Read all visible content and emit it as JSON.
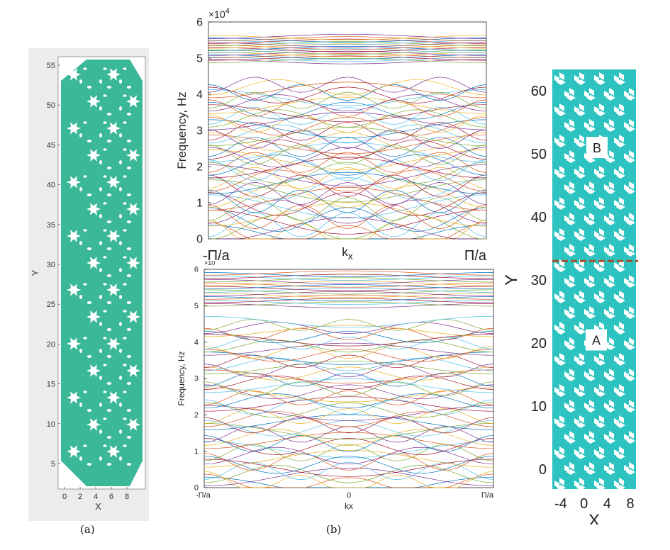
{
  "colors": {
    "teal_a": "#3bb897",
    "teal_c": "#2cc3c0",
    "gray_bg": "#ececec",
    "dashed_line": "#a0522d"
  },
  "panel_a": {
    "xlabel": "X",
    "ylabel": "Y",
    "xticks": [
      "0",
      "2",
      "4",
      "6",
      "8"
    ],
    "yticks": [
      "5",
      "10",
      "15",
      "20",
      "25",
      "30",
      "35",
      "40",
      "45",
      "50",
      "55"
    ],
    "caption": "(a)"
  },
  "panel_b": {
    "caption": "(b)"
  },
  "panel_c": {
    "xlabel": "X",
    "ylabel": "Y",
    "xticks": [
      "-4",
      "0",
      "4",
      "8"
    ],
    "yticks": [
      "0",
      "10",
      "20",
      "30",
      "40",
      "50",
      "60"
    ],
    "label_a": "A",
    "label_b": "B"
  },
  "chart_data": [
    {
      "type": "line",
      "ylabel": "Frequency, Hz",
      "xlabel": "k",
      "xlabel_sub": "x",
      "y_exponent": "×10",
      "y_exponent_power": "4",
      "ylim": [
        0,
        6
      ],
      "yticks": [
        "0",
        "1",
        "2",
        "3",
        "4",
        "5",
        "6"
      ],
      "xticks": [
        "-Π/a",
        "Π/a"
      ],
      "xlim": [
        -1,
        1
      ],
      "bands_low_max": 4.3,
      "bands_high_range": [
        4.9,
        5.6
      ]
    },
    {
      "type": "line",
      "ylabel": "Frequency, Hz",
      "xlabel": "kx",
      "y_exponent": "×10",
      "y_exponent_power": "4",
      "ylim": [
        0,
        6
      ],
      "yticks": [
        "0",
        "1",
        "2",
        "3",
        "4",
        "5",
        "6"
      ],
      "xticks": [
        "-Π/a",
        "0",
        "Π/a"
      ],
      "xlim": [
        -1,
        1
      ],
      "bands_low_max": 4.6,
      "bands_high_range": [
        5.0,
        5.9
      ]
    }
  ]
}
